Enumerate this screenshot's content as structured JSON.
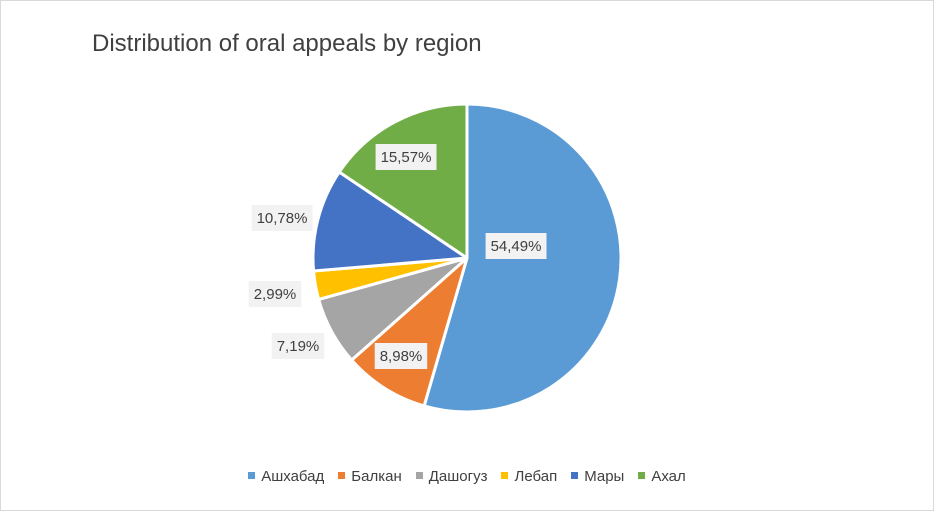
{
  "chart_data": {
    "type": "pie",
    "title": "Distribution of oral appeals by region",
    "categories": [
      "Ашхабад",
      "Балкан",
      "Дашогуз",
      "Лебап",
      "Мары",
      "Ахал"
    ],
    "values": [
      54.49,
      8.98,
      7.19,
      2.99,
      10.78,
      15.57
    ],
    "value_labels": [
      "54,49%",
      "8,98%",
      "7,19%",
      "2,99%",
      "10,78%",
      "15,57%"
    ],
    "unit": "%",
    "colors": [
      "#5b9bd5",
      "#ed7d31",
      "#a5a5a5",
      "#ffc000",
      "#4472c4",
      "#70ad47"
    ],
    "start_angle_deg": 0,
    "direction": "clockwise",
    "legend_position": "bottom"
  }
}
